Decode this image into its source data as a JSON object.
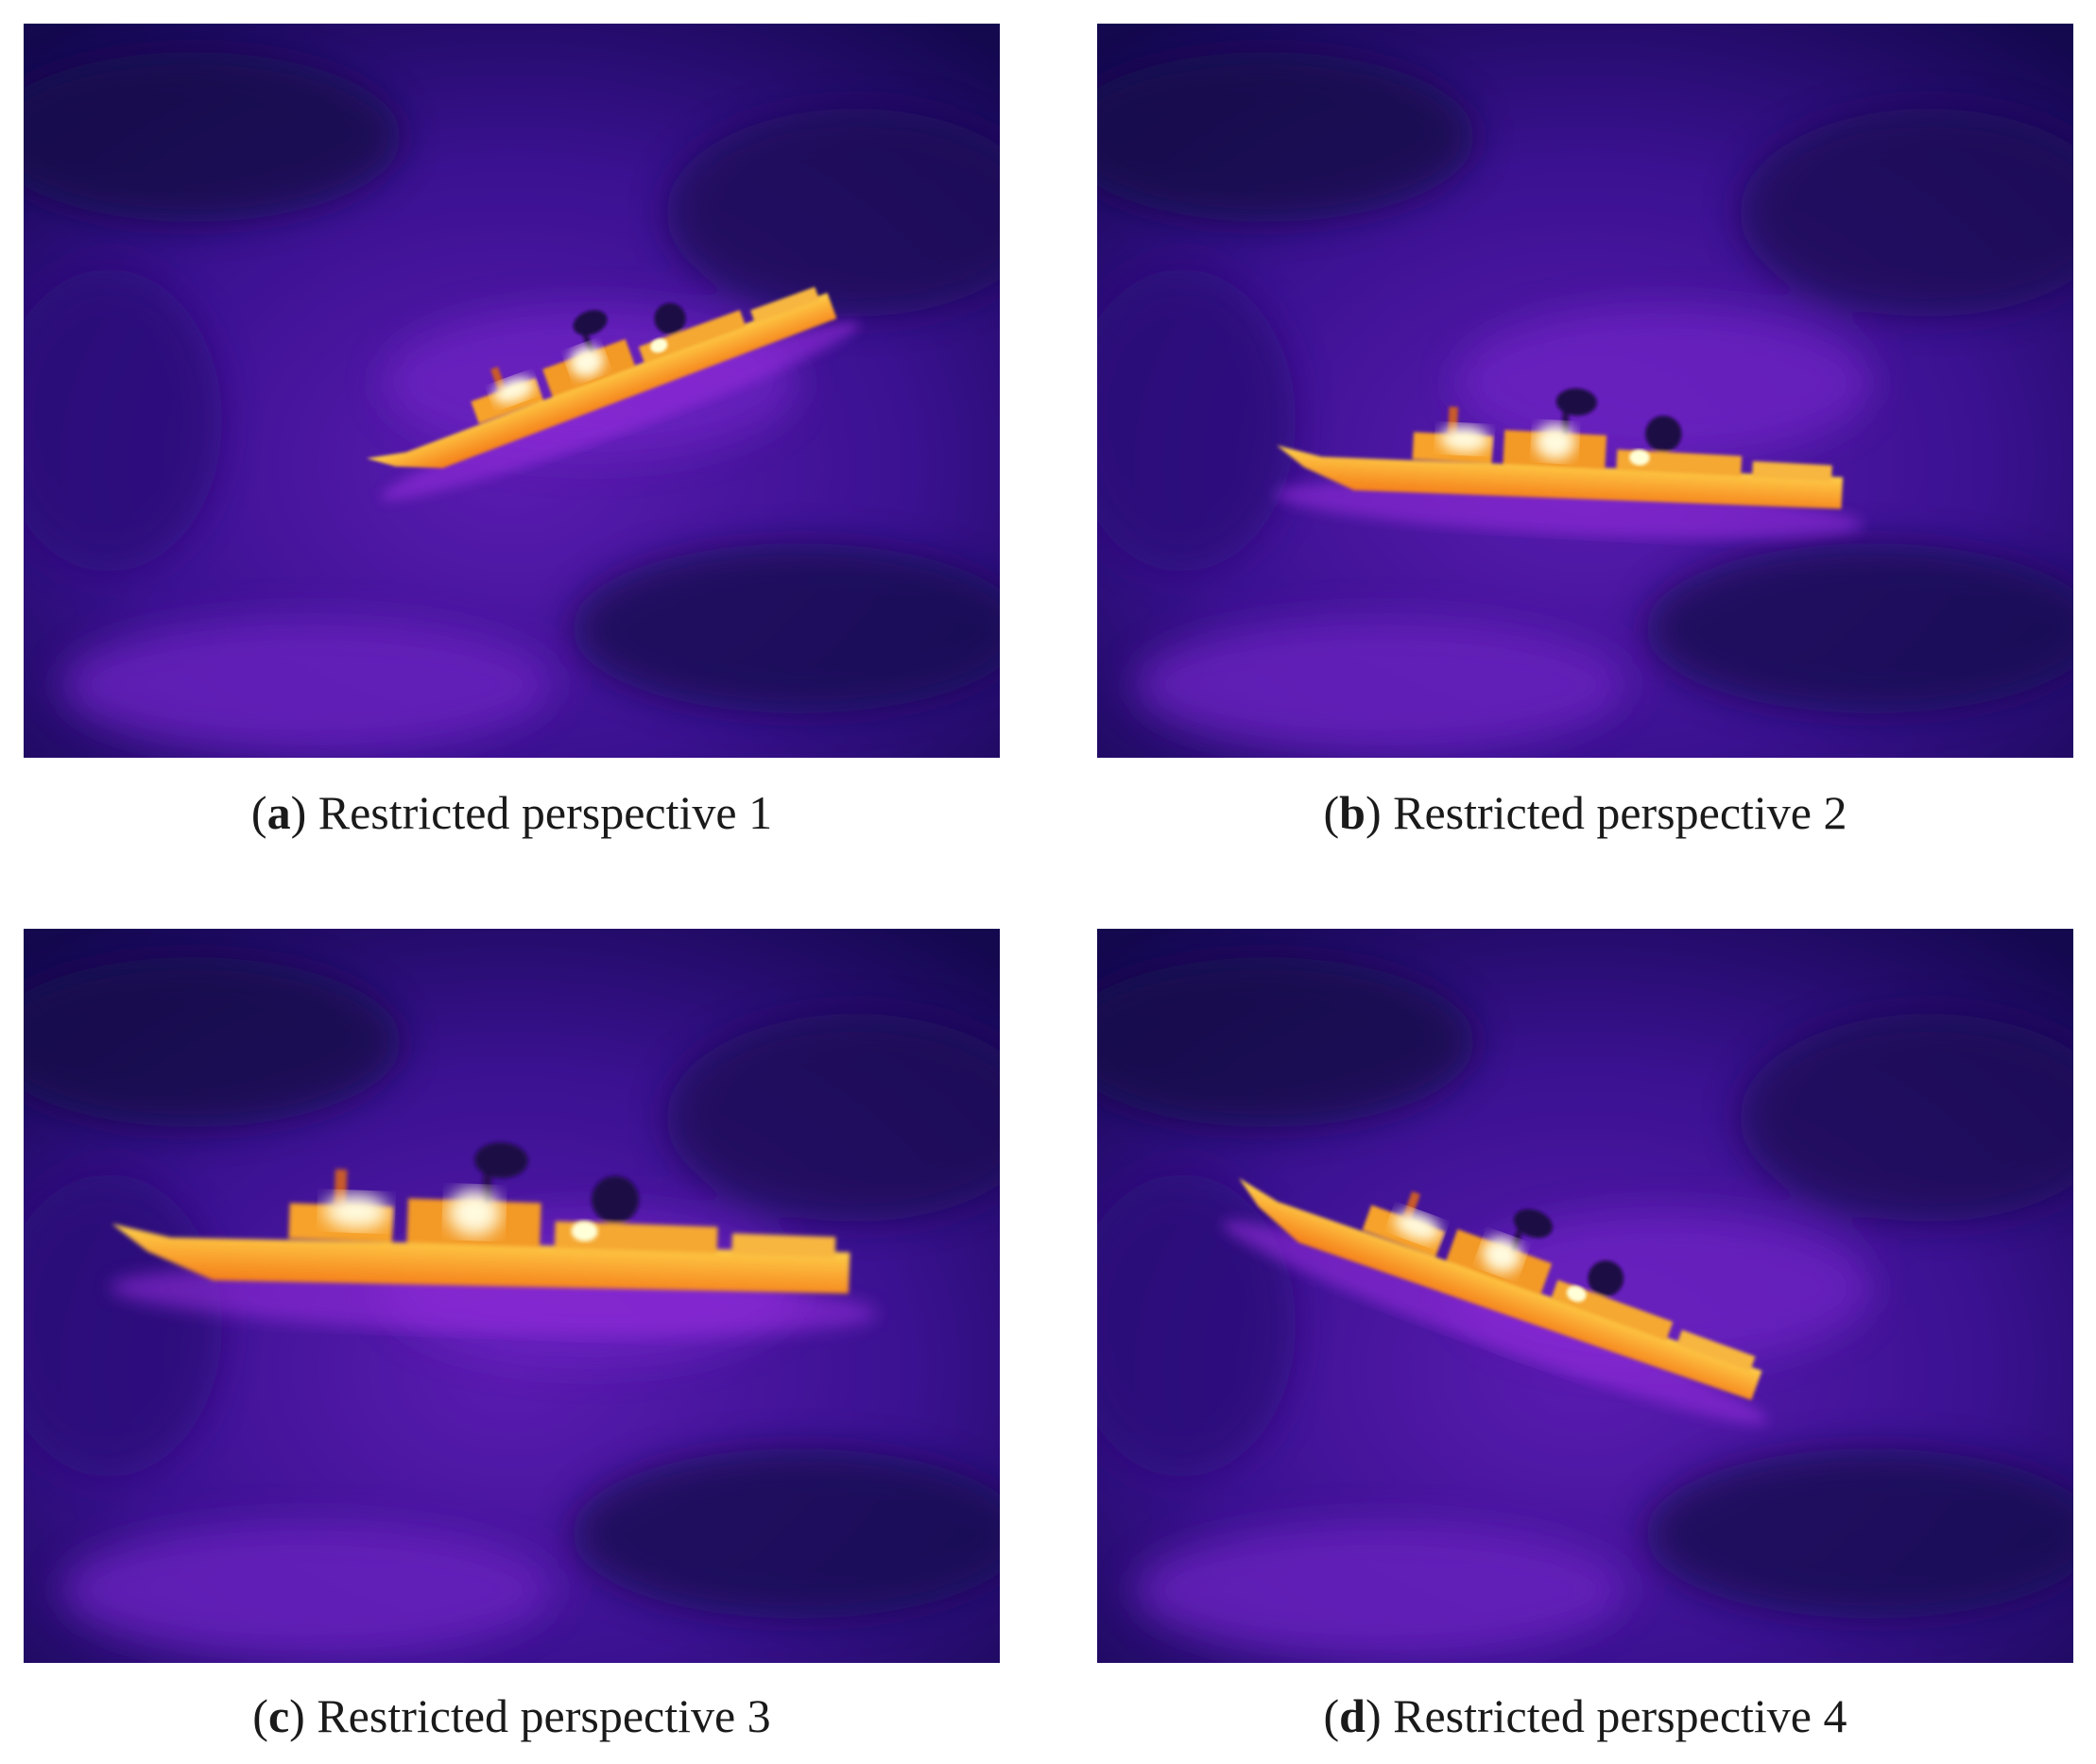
{
  "panels": [
    {
      "label": "(a)",
      "caption": "Restricted perspective 1"
    },
    {
      "label": "(b)",
      "caption": "Restricted perspective 2"
    },
    {
      "label": "(c)",
      "caption": "Restricted perspective 3"
    },
    {
      "label": "(d)",
      "caption": "Restricted perspective 4"
    }
  ]
}
